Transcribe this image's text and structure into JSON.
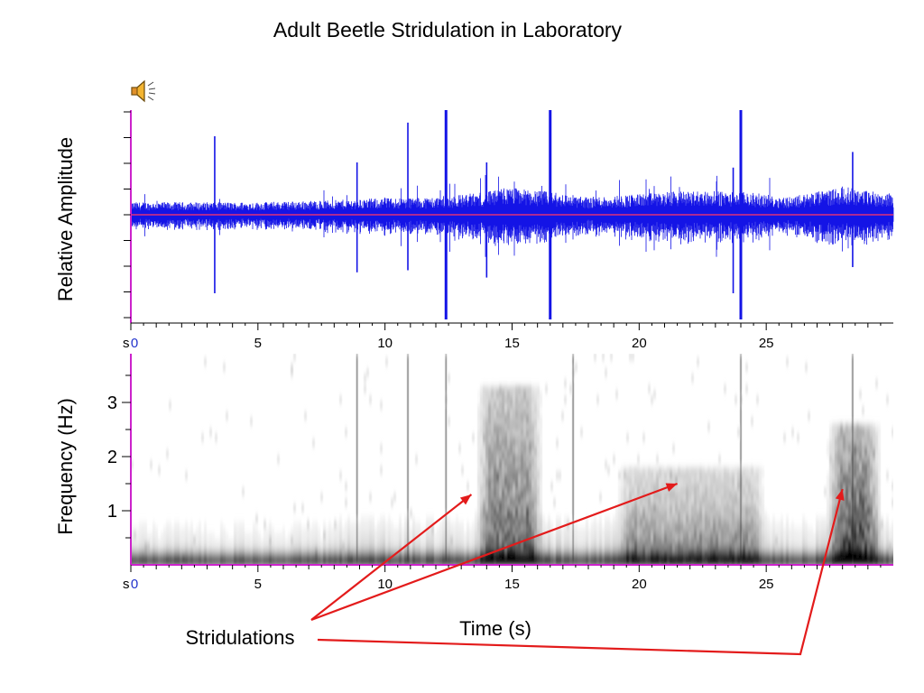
{
  "title": "Adult Beetle Stridulation in Laboratory",
  "audio_icon": "speaker-icon",
  "annotation": {
    "label": "Stridulations",
    "color": "#e31b1b",
    "arrow_targets": [
      {
        "time_s": 13.4,
        "freq_hz": 1.3
      },
      {
        "time_s": 21.5,
        "freq_hz": 1.5
      },
      {
        "time_s": 28.0,
        "freq_hz": 1.4
      }
    ]
  },
  "chart_data": [
    {
      "type": "line",
      "ylabel": "Relative Amplitude",
      "xlabel": "",
      "axis_unit_label": "s",
      "xlim": [
        0,
        30
      ],
      "ylim": [
        -1,
        1
      ],
      "x_ticks": [
        0,
        5,
        10,
        15,
        20,
        25
      ],
      "x_tick_labels": [
        "0",
        "5",
        "10",
        "15",
        "20",
        "25"
      ],
      "series_color": "#1414e6",
      "baseline_color": "#e0307a",
      "grid": false,
      "noise_amplitude_by_time": [
        {
          "t": 0,
          "amp": 0.12
        },
        {
          "t": 5,
          "amp": 0.12
        },
        {
          "t": 8,
          "amp": 0.14
        },
        {
          "t": 10,
          "amp": 0.16
        },
        {
          "t": 12,
          "amp": 0.17
        },
        {
          "t": 14,
          "amp": 0.22
        },
        {
          "t": 15,
          "amp": 0.26
        },
        {
          "t": 16.5,
          "amp": 0.22
        },
        {
          "t": 18,
          "amp": 0.17
        },
        {
          "t": 20,
          "amp": 0.2
        },
        {
          "t": 22,
          "amp": 0.23
        },
        {
          "t": 24,
          "amp": 0.22
        },
        {
          "t": 26,
          "amp": 0.17
        },
        {
          "t": 28,
          "amp": 0.27
        },
        {
          "t": 30,
          "amp": 0.2
        }
      ],
      "spikes": [
        {
          "t": 3.3,
          "up": 0.75,
          "down": 0.75
        },
        {
          "t": 8.9,
          "up": 0.5,
          "down": 0.55
        },
        {
          "t": 10.9,
          "up": 0.88,
          "down": 0.53
        },
        {
          "t": 12.4,
          "up": 1.0,
          "down": 1.0
        },
        {
          "t": 14.0,
          "up": 0.5,
          "down": 0.6
        },
        {
          "t": 16.5,
          "up": 1.0,
          "down": 1.0
        },
        {
          "t": 23.7,
          "up": 0.45,
          "down": 0.75
        },
        {
          "t": 24.0,
          "up": 1.0,
          "down": 1.0
        },
        {
          "t": 28.4,
          "up": 0.6,
          "down": 0.5
        }
      ]
    },
    {
      "type": "heatmap",
      "ylabel": "Frequency (Hz)",
      "xlabel": "Time (s)",
      "axis_unit_label": "s",
      "xlim": [
        0,
        30
      ],
      "ylim": [
        0,
        3.9
      ],
      "x_ticks": [
        0,
        5,
        10,
        15,
        20,
        25
      ],
      "x_tick_labels": [
        "0",
        "5",
        "10",
        "15",
        "20",
        "25"
      ],
      "y_ticks": [
        1,
        2,
        3
      ],
      "y_tick_labels": [
        "1",
        "2",
        "3"
      ],
      "axis_color": "#cc22cc",
      "colormap": "grayscale-inverted",
      "energy_hotspots": [
        {
          "t_start": 13.5,
          "t_end": 16.2,
          "f_max": 3.3,
          "intensity": 0.75
        },
        {
          "t_start": 19.0,
          "t_end": 25.0,
          "f_max": 1.8,
          "intensity": 0.5
        },
        {
          "t_start": 27.3,
          "t_end": 29.5,
          "f_max": 2.6,
          "intensity": 0.95
        }
      ],
      "broadband_clicks": [
        {
          "t": 8.9
        },
        {
          "t": 10.9
        },
        {
          "t": 12.4
        },
        {
          "t": 17.4
        },
        {
          "t": 24.0
        },
        {
          "t": 28.4
        }
      ]
    }
  ]
}
